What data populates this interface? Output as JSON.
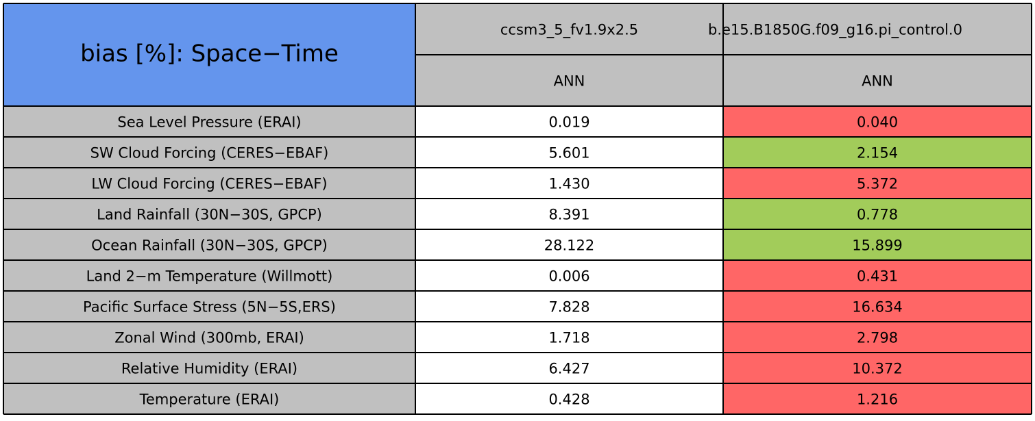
{
  "table": {
    "title": "bias [%]: Space−Time",
    "title_color": "#6495ed",
    "header_color": "#c0c0c0",
    "columns": [
      {
        "name": "ccsm3_5_fv1.9x2.5",
        "season": "ANN"
      },
      {
        "name": "b.e15.B1850G.f09_g16.pi_control.0",
        "season": "ANN"
      }
    ],
    "rows": [
      {
        "label": "Sea Level Pressure (ERAI)",
        "cells": [
          "0.019",
          "0.040"
        ],
        "colors": [
          "#ffffff",
          "#ff6666"
        ]
      },
      {
        "label": "SW Cloud Forcing (CERES−EBAF)",
        "cells": [
          "5.601",
          "2.154"
        ],
        "colors": [
          "#ffffff",
          "#a2cc5a"
        ]
      },
      {
        "label": "LW Cloud Forcing (CERES−EBAF)",
        "cells": [
          "1.430",
          "5.372"
        ],
        "colors": [
          "#ffffff",
          "#ff6666"
        ]
      },
      {
        "label": "Land Rainfall (30N−30S, GPCP)",
        "cells": [
          "8.391",
          "0.778"
        ],
        "colors": [
          "#ffffff",
          "#a2cc5a"
        ]
      },
      {
        "label": "Ocean Rainfall (30N−30S, GPCP)",
        "cells": [
          "28.122",
          "15.899"
        ],
        "colors": [
          "#ffffff",
          "#a2cc5a"
        ]
      },
      {
        "label": "Land 2−m Temperature (Willmott)",
        "cells": [
          "0.006",
          "0.431"
        ],
        "colors": [
          "#ffffff",
          "#ff6666"
        ]
      },
      {
        "label": "Pacific Surface Stress (5N−5S,ERS)",
        "cells": [
          "7.828",
          "16.634"
        ],
        "colors": [
          "#ffffff",
          "#ff6666"
        ]
      },
      {
        "label": "Zonal Wind (300mb, ERAI)",
        "cells": [
          "1.718",
          "2.798"
        ],
        "colors": [
          "#ffffff",
          "#ff6666"
        ]
      },
      {
        "label": "Relative Humidity (ERAI)",
        "cells": [
          "6.427",
          "10.372"
        ],
        "colors": [
          "#ffffff",
          "#ff6666"
        ]
      },
      {
        "label": "Temperature (ERAI)",
        "cells": [
          "0.428",
          "1.216"
        ],
        "colors": [
          "#ffffff",
          "#ff6666"
        ]
      }
    ]
  }
}
